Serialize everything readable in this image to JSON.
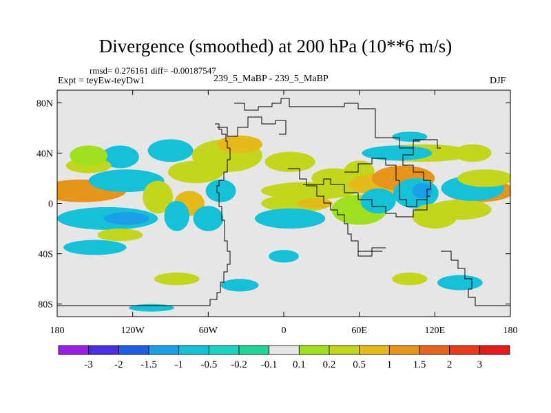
{
  "chart_data": {
    "type": "heatmap",
    "title": "Divergence (smoothed) at 200 hPa (10**6 m/s)",
    "stats": "rmsd= 0.276161 diff= -0.00187547",
    "experiment": "Expt = teyEw-teyDw1",
    "runs": "239_5_MaBP - 239_5_MaBP",
    "season": "DJF",
    "x": {
      "range": [
        -180,
        180
      ],
      "ticks": [
        -180,
        -120,
        -60,
        0,
        60,
        120,
        180
      ],
      "tick_labels": [
        "180",
        "120W",
        "60W",
        "0",
        "60E",
        "120E",
        "180"
      ]
    },
    "y": {
      "range": [
        -90,
        90
      ],
      "ticks": [
        80,
        40,
        0,
        -40,
        -80
      ],
      "tick_labels": [
        "80N",
        "40N",
        "0",
        "40S",
        "80S"
      ]
    },
    "colorbar": {
      "labels": [
        "-3",
        "-2",
        "-1.5",
        "-1",
        "-0.5",
        "-0.2",
        "-0.1",
        "0.1",
        "0.2",
        "0.5",
        "1",
        "1.5",
        "2",
        "3"
      ],
      "colors": [
        "#9c1fe8",
        "#4a2ee6",
        "#1f5de6",
        "#1aa0e6",
        "#15c1d9",
        "#1cd4c4",
        "#1ed596",
        "#e6e6e6",
        "#9ee01e",
        "#c4d51d",
        "#e6b91a",
        "#e6951a",
        "#e6641a",
        "#e63a1a",
        "#e61a1a"
      ]
    },
    "features": [
      {
        "lon": -170,
        "lat": 12,
        "rx": 22,
        "ry": 5,
        "level": 13
      },
      {
        "lon": -160,
        "lat": 10,
        "rx": 35,
        "ry": 9,
        "level": 11
      },
      {
        "lon": 165,
        "lat": 10,
        "rx": 18,
        "ry": 5,
        "level": 13
      },
      {
        "lon": 155,
        "lat": 10,
        "rx": 28,
        "ry": 9,
        "level": 11
      },
      {
        "lon": -140,
        "lat": -12,
        "rx": 40,
        "ry": 9,
        "level": 4
      },
      {
        "lon": -125,
        "lat": -12,
        "rx": 18,
        "ry": 5,
        "level": 3
      },
      {
        "lon": -125,
        "lat": 18,
        "rx": 30,
        "ry": 9,
        "level": 4
      },
      {
        "lon": -130,
        "lat": 37,
        "rx": 15,
        "ry": 9,
        "level": 4
      },
      {
        "lon": -155,
        "lat": 30,
        "rx": 18,
        "ry": 6,
        "level": 9
      },
      {
        "lon": -155,
        "lat": 38,
        "rx": 15,
        "ry": 8,
        "level": 8
      },
      {
        "lon": -90,
        "lat": 42,
        "rx": 18,
        "ry": 9,
        "level": 4
      },
      {
        "lon": -70,
        "lat": 25,
        "rx": 22,
        "ry": 9,
        "level": 9
      },
      {
        "lon": -100,
        "lat": 5,
        "rx": 12,
        "ry": 13,
        "level": 9
      },
      {
        "lon": -75,
        "lat": 0,
        "rx": 12,
        "ry": 10,
        "level": 10
      },
      {
        "lon": -85,
        "lat": -10,
        "rx": 10,
        "ry": 12,
        "level": 4
      },
      {
        "lon": -60,
        "lat": -12,
        "rx": 12,
        "ry": 10,
        "level": 4
      },
      {
        "lon": -50,
        "lat": 10,
        "rx": 12,
        "ry": 9,
        "level": 4
      },
      {
        "lon": -45,
        "lat": 38,
        "rx": 28,
        "ry": 13,
        "level": 9
      },
      {
        "lon": -35,
        "lat": 47,
        "rx": 18,
        "ry": 7,
        "level": 10
      },
      {
        "lon": 5,
        "lat": 33,
        "rx": 20,
        "ry": 8,
        "level": 9
      },
      {
        "lon": 40,
        "lat": 20,
        "rx": 18,
        "ry": 8,
        "level": 9
      },
      {
        "lon": 60,
        "lat": 26,
        "rx": 12,
        "ry": 8,
        "level": 9
      },
      {
        "lon": 20,
        "lat": 10,
        "rx": 38,
        "ry": 7,
        "level": 9
      },
      {
        "lon": 10,
        "lat": 0,
        "rx": 28,
        "ry": 7,
        "level": 9
      },
      {
        "lon": 25,
        "lat": 0,
        "rx": 14,
        "ry": 4,
        "level": 10
      },
      {
        "lon": 5,
        "lat": -12,
        "rx": 28,
        "ry": 8,
        "level": 4
      },
      {
        "lon": 60,
        "lat": -5,
        "rx": 22,
        "ry": 12,
        "level": 8
      },
      {
        "lon": 80,
        "lat": 15,
        "rx": 28,
        "ry": 9,
        "level": 10
      },
      {
        "lon": 95,
        "lat": 20,
        "rx": 25,
        "ry": 10,
        "level": 11
      },
      {
        "lon": 105,
        "lat": 8,
        "rx": 18,
        "ry": 12,
        "level": 4
      },
      {
        "lon": 110,
        "lat": 10,
        "rx": 8,
        "ry": 6,
        "level": 3
      },
      {
        "lon": 75,
        "lat": 2,
        "rx": 14,
        "ry": 10,
        "level": 4
      },
      {
        "lon": 120,
        "lat": -10,
        "rx": 18,
        "ry": 10,
        "level": 9
      },
      {
        "lon": 140,
        "lat": -5,
        "rx": 25,
        "ry": 8,
        "level": 9
      },
      {
        "lon": 150,
        "lat": 40,
        "rx": 15,
        "ry": 7,
        "level": 9
      },
      {
        "lon": 150,
        "lat": 12,
        "rx": 25,
        "ry": 10,
        "level": 4
      },
      {
        "lon": 110,
        "lat": 40,
        "rx": 40,
        "ry": 7,
        "level": 9
      },
      {
        "lon": 160,
        "lat": 20,
        "rx": 22,
        "ry": 7,
        "level": 9
      },
      {
        "lon": 90,
        "lat": 40,
        "rx": 28,
        "ry": 6,
        "level": 4
      },
      {
        "lon": -150,
        "lat": -35,
        "rx": 25,
        "ry": 6,
        "level": 4
      },
      {
        "lon": -130,
        "lat": -25,
        "rx": 18,
        "ry": 5,
        "level": 9
      },
      {
        "lon": 0,
        "lat": -42,
        "rx": 12,
        "ry": 5,
        "level": 4
      },
      {
        "lon": -85,
        "lat": -60,
        "rx": 18,
        "ry": 5,
        "level": 9
      },
      {
        "lon": -35,
        "lat": -65,
        "rx": 15,
        "ry": 5,
        "level": 4
      },
      {
        "lon": 140,
        "lat": -63,
        "rx": 18,
        "ry": 6,
        "level": 4
      },
      {
        "lon": 100,
        "lat": -60,
        "rx": 14,
        "ry": 5,
        "level": 9
      },
      {
        "lon": 100,
        "lat": 53,
        "rx": 14,
        "ry": 4,
        "level": 4
      },
      {
        "lon": -105,
        "lat": -83,
        "rx": 18,
        "ry": 3,
        "level": 4
      }
    ]
  }
}
